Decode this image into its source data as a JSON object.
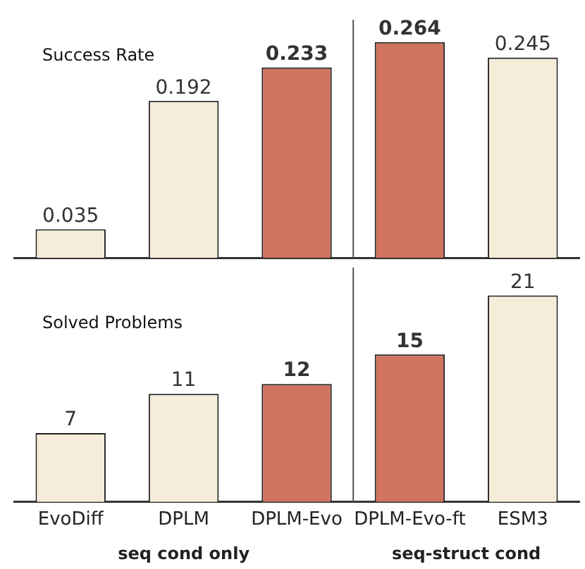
{
  "chart_data": [
    {
      "type": "bar",
      "title": "Success Rate",
      "categories": [
        null,
        null,
        null,
        null,
        null
      ],
      "values": [
        0.035,
        0.192,
        0.233,
        0.264,
        0.245
      ],
      "colors": [
        "#f5ecda",
        "#f5ecda",
        "#d07460",
        "#d07460",
        "#f5ecda"
      ],
      "data_labels": true,
      "tick_labels": false,
      "grid": false,
      "legend": false
    },
    {
      "type": "bar",
      "title": "Solved Problems",
      "categories": [
        "EvoDiff",
        "DPLM",
        "DPLM-Evo",
        "DPLM-Evo-ft",
        "ESM3"
      ],
      "values": [
        7,
        11,
        12,
        15,
        21
      ],
      "colors": [
        "#f5ecda",
        "#f5ecda",
        "#d07460",
        "#d07460",
        "#f5ecda"
      ],
      "data_labels": true,
      "tick_labels": "x",
      "grid": false,
      "legend": false,
      "annotations": [
        "seq cond only",
        "seq-struct cond"
      ]
    }
  ]
}
